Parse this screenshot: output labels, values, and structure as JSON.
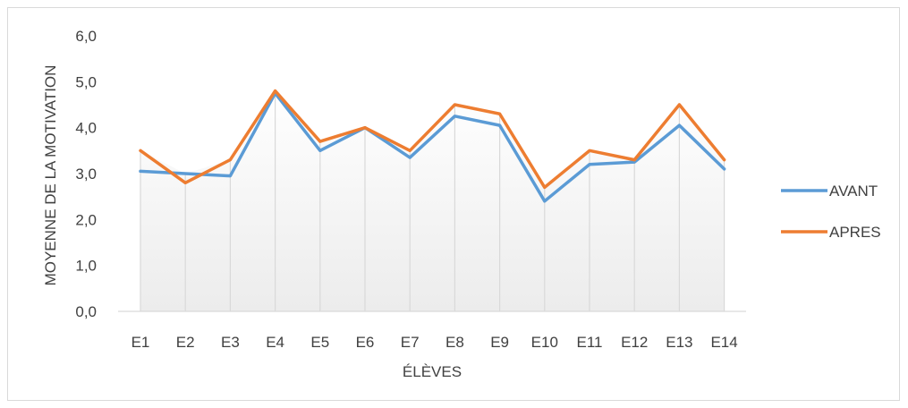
{
  "chart_data": {
    "type": "line",
    "categories": [
      "E1",
      "E2",
      "E3",
      "E4",
      "E5",
      "E6",
      "E7",
      "E8",
      "E9",
      "E10",
      "E11",
      "E12",
      "E13",
      "E14"
    ],
    "series": [
      {
        "name": "AVANT",
        "color": "#5b9bd5",
        "values": [
          3.05,
          3.0,
          2.95,
          4.75,
          3.5,
          4.0,
          3.35,
          4.25,
          4.05,
          2.4,
          3.2,
          3.25,
          4.05,
          3.1
        ]
      },
      {
        "name": "APRES",
        "color": "#ed7d31",
        "values": [
          3.5,
          2.8,
          3.3,
          4.8,
          3.7,
          4.0,
          3.5,
          4.5,
          4.3,
          2.7,
          3.5,
          3.3,
          4.5,
          3.3
        ]
      }
    ],
    "xlabel": "ÉLÈVES",
    "ylabel": "MOYENNE DE LA MOTIVATION",
    "ylim": [
      0,
      6
    ],
    "yticks": [
      "0,0",
      "1,0",
      "2,0",
      "3,0",
      "4,0",
      "5,0",
      "6,0"
    ],
    "legend_position": "right",
    "area_gradient": true,
    "drop_lines": true
  }
}
